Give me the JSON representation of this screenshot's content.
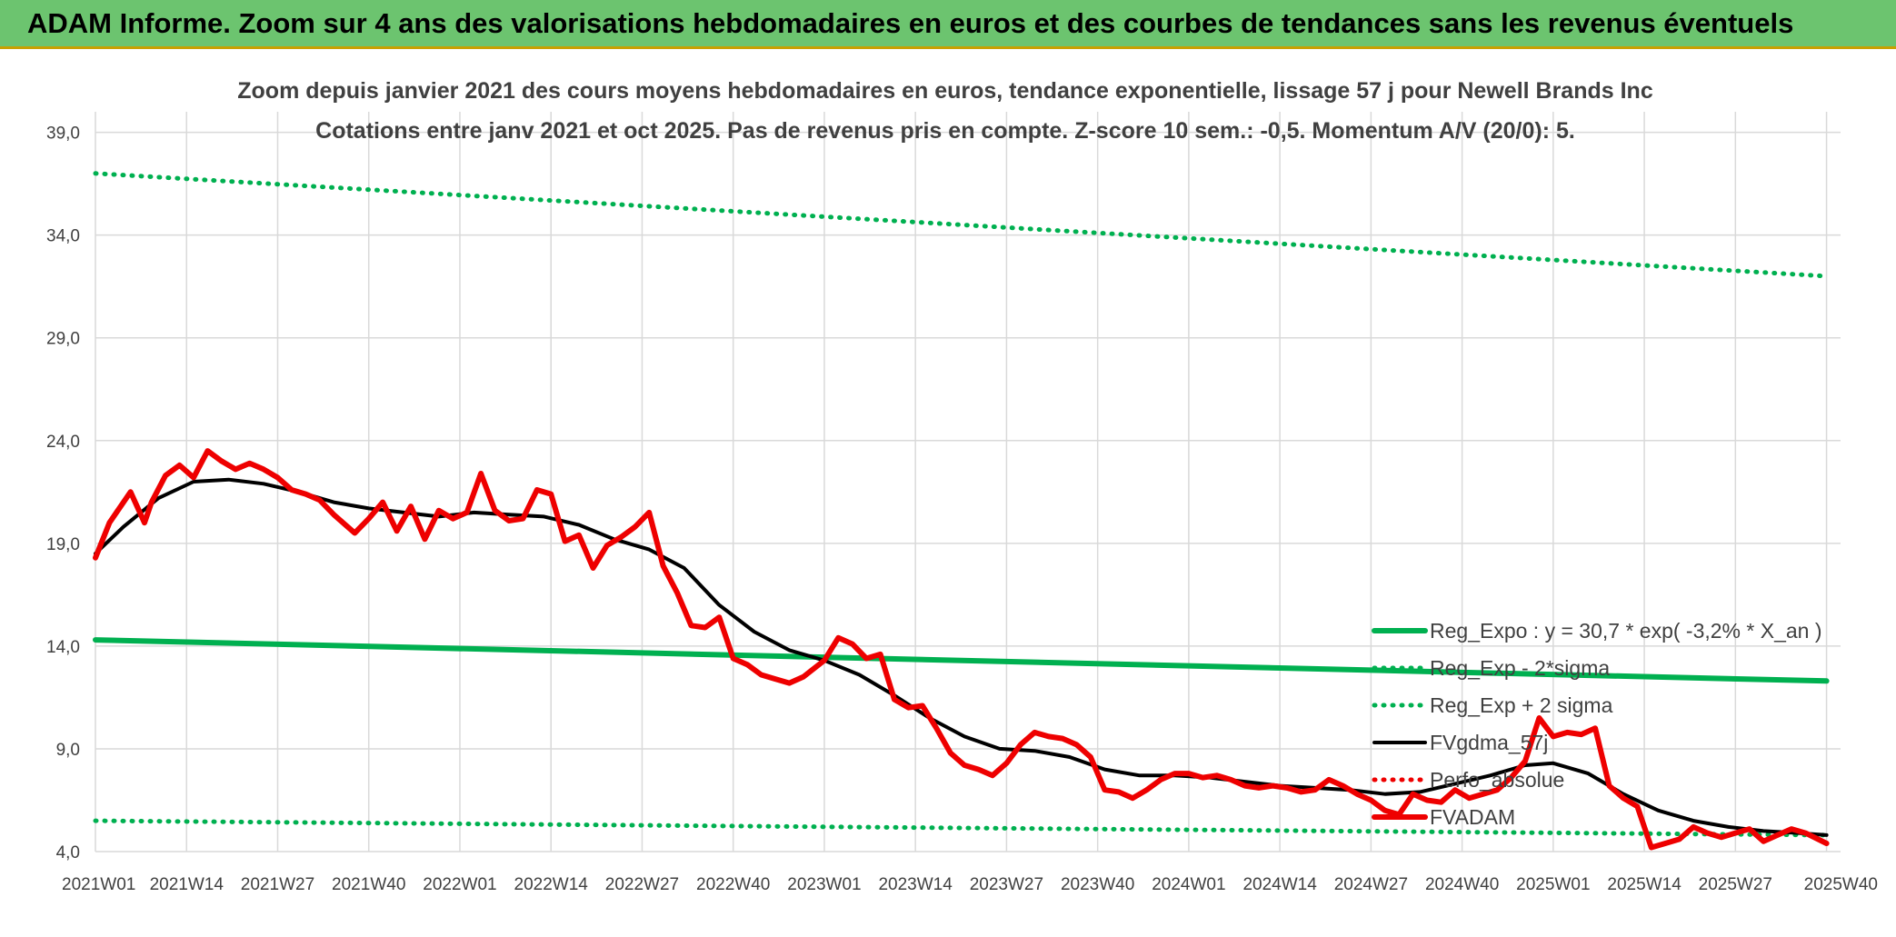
{
  "banner": {
    "title": "ADAM Informe. Zoom sur 4 ans des valorisations hebdomadaires en euros et des courbes de tendances sans les revenus éventuels"
  },
  "colors": {
    "banner": "#6cc46f",
    "fvadam": "#ee0000",
    "fvgdma": "#000000",
    "reg_expo": "#00b050",
    "perfo": "#ee0000",
    "grid": "#d9d9d9"
  },
  "chart_data": {
    "type": "line",
    "title": "Zoom depuis janvier 2021 des cours moyens hebdomadaires en euros, tendance exponentielle, lissage 57 j pour Newell Brands Inc",
    "subtitle": "Cotations entre janv 2021 et oct 2025. Pas de revenus pris en compte. Z-score 10 sem.: -0,5. Momentum A/V (20/0): 5.",
    "xlabel": "",
    "ylabel": "",
    "ylim": [
      4,
      40
    ],
    "yticks": [
      "4,0",
      "9,0",
      "14,0",
      "19,0",
      "24,0",
      "29,0",
      "34,0",
      "39,0"
    ],
    "x_ticks": [
      "2021W01",
      "2021W14",
      "2021W27",
      "2021W40",
      "2022W01",
      "2022W14",
      "2022W27",
      "2022W40",
      "2023W01",
      "2023W14",
      "2023W27",
      "2023W40",
      "2024W01",
      "2024W14",
      "2024W27",
      "2024W40",
      "2025W01",
      "2025W14",
      "2025W27",
      "2025W40"
    ],
    "grid": true,
    "legend_position": "right",
    "series": [
      {
        "name": "Reg_Expo : y = 30,7 * exp( -3,2% *  X_an )",
        "style": "solid-thick",
        "x": [
          "2021W01",
          "2025W40"
        ],
        "y": [
          14.3,
          12.3
        ]
      },
      {
        "name": "Reg_Exp - 2*sigma",
        "style": "dotted",
        "x": [
          "2021W01",
          "2025W40"
        ],
        "y": [
          5.5,
          4.8
        ]
      },
      {
        "name": "Reg_Exp + 2 sigma",
        "style": "dotted",
        "x": [
          "2021W01",
          "2025W40"
        ],
        "y": [
          37.0,
          32.0
        ]
      },
      {
        "name": "FVgdma_57j",
        "style": "solid",
        "x": [
          "2021W01",
          "2021W05",
          "2021W10",
          "2021W15",
          "2021W20",
          "2021W25",
          "2021W30",
          "2021W35",
          "2021W40",
          "2021W45",
          "2021W50",
          "2022W03",
          "2022W08",
          "2022W13",
          "2022W18",
          "2022W23",
          "2022W28",
          "2022W33",
          "2022W38",
          "2022W43",
          "2022W48",
          "2023W01",
          "2023W06",
          "2023W11",
          "2023W16",
          "2023W21",
          "2023W26",
          "2023W31",
          "2023W36",
          "2023W41",
          "2023W46",
          "2023W51",
          "2024W04",
          "2024W09",
          "2024W14",
          "2024W19",
          "2024W24",
          "2024W29",
          "2024W34",
          "2024W39",
          "2024W44",
          "2024W49",
          "2025W01",
          "2025W06",
          "2025W11",
          "2025W16",
          "2025W21",
          "2025W26",
          "2025W31",
          "2025W36",
          "2025W40"
        ],
        "y": [
          18.5,
          19.8,
          21.2,
          22.0,
          22.1,
          21.9,
          21.5,
          21.0,
          20.7,
          20.5,
          20.3,
          20.5,
          20.4,
          20.3,
          19.9,
          19.2,
          18.7,
          17.8,
          16.0,
          14.7,
          13.8,
          13.3,
          12.6,
          11.6,
          10.5,
          9.6,
          9.0,
          8.9,
          8.6,
          8.0,
          7.7,
          7.7,
          7.6,
          7.4,
          7.2,
          7.1,
          7.0,
          6.8,
          6.9,
          7.3,
          7.7,
          8.2,
          8.3,
          7.8,
          6.8,
          6.0,
          5.5,
          5.2,
          5.0,
          4.9,
          4.8
        ]
      },
      {
        "name": "Perfo_absolue",
        "style": "dotted-red",
        "x": [],
        "y": []
      },
      {
        "name": "FVADAM",
        "style": "solid-thick-red",
        "x": [
          "2021W01",
          "2021W03",
          "2021W06",
          "2021W08",
          "2021W09",
          "2021W11",
          "2021W13",
          "2021W15",
          "2021W17",
          "2021W19",
          "2021W21",
          "2021W23",
          "2021W25",
          "2021W27",
          "2021W29",
          "2021W31",
          "2021W33",
          "2021W35",
          "2021W38",
          "2021W40",
          "2021W42",
          "2021W44",
          "2021W46",
          "2021W48",
          "2021W50",
          "2021W52",
          "2022W02",
          "2022W04",
          "2022W06",
          "2022W08",
          "2022W10",
          "2022W12",
          "2022W14",
          "2022W16",
          "2022W18",
          "2022W20",
          "2022W22",
          "2022W24",
          "2022W26",
          "2022W28",
          "2022W30",
          "2022W32",
          "2022W34",
          "2022W36",
          "2022W38",
          "2022W40",
          "2022W42",
          "2022W44",
          "2022W46",
          "2022W48",
          "2022W50",
          "2023W01",
          "2023W03",
          "2023W05",
          "2023W07",
          "2023W09",
          "2023W11",
          "2023W13",
          "2023W15",
          "2023W17",
          "2023W19",
          "2023W21",
          "2023W23",
          "2023W25",
          "2023W27",
          "2023W29",
          "2023W31",
          "2023W33",
          "2023W35",
          "2023W37",
          "2023W39",
          "2023W41",
          "2023W43",
          "2023W45",
          "2023W47",
          "2023W49",
          "2023W51",
          "2024W01",
          "2024W03",
          "2024W05",
          "2024W07",
          "2024W09",
          "2024W11",
          "2024W13",
          "2024W15",
          "2024W17",
          "2024W19",
          "2024W21",
          "2024W23",
          "2024W25",
          "2024W27",
          "2024W29",
          "2024W31",
          "2024W33",
          "2024W35",
          "2024W37",
          "2024W39",
          "2024W41",
          "2024W43",
          "2024W45",
          "2024W47",
          "2024W49",
          "2024W51",
          "2025W01",
          "2025W03",
          "2025W05",
          "2025W07",
          "2025W09",
          "2025W11",
          "2025W13",
          "2025W15",
          "2025W17",
          "2025W19",
          "2025W21",
          "2025W23",
          "2025W25",
          "2025W27",
          "2025W29",
          "2025W31",
          "2025W33",
          "2025W35",
          "2025W37",
          "2025W40"
        ],
        "y": [
          18.3,
          20.0,
          21.5,
          20.0,
          21.0,
          22.3,
          22.8,
          22.2,
          23.5,
          23.0,
          22.6,
          22.9,
          22.6,
          22.2,
          21.6,
          21.4,
          21.1,
          20.4,
          19.5,
          20.2,
          21.0,
          19.6,
          20.8,
          19.2,
          20.6,
          20.2,
          20.5,
          22.4,
          20.6,
          20.1,
          20.2,
          21.6,
          21.4,
          19.1,
          19.4,
          17.8,
          18.9,
          19.3,
          19.8,
          20.5,
          17.9,
          16.6,
          15.0,
          14.9,
          15.4,
          13.4,
          13.1,
          12.6,
          12.4,
          12.2,
          12.5,
          13.3,
          14.4,
          14.1,
          13.4,
          13.6,
          11.4,
          11.0,
          11.1,
          10.0,
          8.8,
          8.2,
          8.0,
          7.7,
          8.3,
          9.2,
          9.8,
          9.6,
          9.5,
          9.2,
          8.6,
          7.0,
          6.9,
          6.6,
          7.0,
          7.5,
          7.8,
          7.8,
          7.6,
          7.7,
          7.5,
          7.2,
          7.1,
          7.2,
          7.1,
          6.9,
          7.0,
          7.5,
          7.2,
          6.8,
          6.5,
          6.0,
          5.8,
          6.8,
          6.5,
          6.4,
          7.0,
          6.6,
          6.8,
          7.0,
          7.6,
          8.4,
          10.5,
          9.6,
          9.8,
          9.7,
          10.0,
          7.2,
          6.6,
          6.2,
          4.2,
          4.4,
          4.6,
          5.2,
          4.9,
          4.7,
          4.9,
          5.1,
          4.5,
          4.8,
          5.1,
          4.9,
          4.4
        ]
      }
    ]
  }
}
